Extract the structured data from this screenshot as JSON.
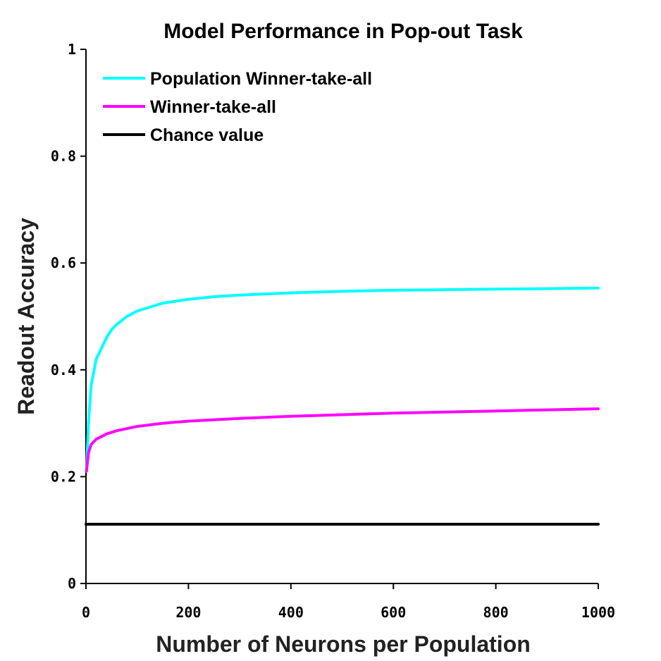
{
  "chart_data": {
    "type": "line",
    "title": "Model Performance in Pop-out Task",
    "xlabel": "Number of Neurons per Population",
    "ylabel": "Readout Accuracy",
    "xlim": [
      0,
      1000
    ],
    "ylim": [
      0,
      1
    ],
    "x_ticks": [
      "0",
      "200",
      "400",
      "600",
      "800",
      "1000"
    ],
    "y_ticks": [
      "0",
      "0.2",
      "0.4",
      "0.6",
      "0.8",
      "1"
    ],
    "grid": false,
    "legend_position": "top-left",
    "series": [
      {
        "name": "Population Winner-take-all",
        "color": "#00ffff",
        "x": [
          1,
          5,
          10,
          20,
          30,
          40,
          50,
          60,
          80,
          100,
          150,
          200,
          250,
          300,
          400,
          500,
          600,
          700,
          800,
          900,
          1000
        ],
        "y": [
          0.21,
          0.3,
          0.37,
          0.42,
          0.44,
          0.46,
          0.475,
          0.485,
          0.5,
          0.51,
          0.525,
          0.532,
          0.537,
          0.54,
          0.544,
          0.547,
          0.549,
          0.55,
          0.551,
          0.552,
          0.553
        ]
      },
      {
        "name": "Winner-take-all",
        "color": "#ff00ff",
        "x": [
          1,
          5,
          10,
          20,
          40,
          60,
          80,
          100,
          150,
          200,
          300,
          400,
          500,
          600,
          700,
          800,
          900,
          1000
        ],
        "y": [
          0.21,
          0.245,
          0.26,
          0.27,
          0.28,
          0.286,
          0.29,
          0.294,
          0.3,
          0.304,
          0.309,
          0.313,
          0.316,
          0.319,
          0.321,
          0.323,
          0.325,
          0.327
        ]
      },
      {
        "name": "Chance value",
        "color": "#000000",
        "x": [
          0,
          1000
        ],
        "y": [
          0.111,
          0.111
        ]
      }
    ]
  }
}
